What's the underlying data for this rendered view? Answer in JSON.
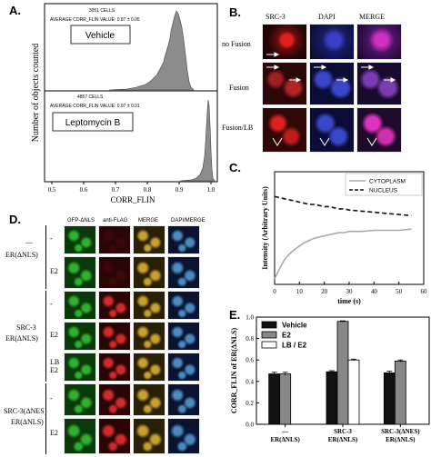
{
  "panel_labels": {
    "a": "A.",
    "b": "B.",
    "c": "C.",
    "d": "D.",
    "e": "E."
  },
  "panel_a": {
    "ylabel": "Number of objects counted",
    "xlabel": "CORR_FLIN",
    "x_ticks": [
      "0.5",
      "0.6",
      "0.7",
      "0.8",
      "0.9",
      "1.0"
    ],
    "top": {
      "cells": "3051 CELLS",
      "avg": "AVERAGE CORR_FLIN VALUE: 0.87 ± 0.05",
      "box": "Vehicle"
    },
    "bottom": {
      "cells": "4857 CELLS",
      "avg": "AVERAGE CORR_FLIN VALUE: 0.97 ± 0.01",
      "box": "Leptomycin B"
    }
  },
  "panel_b": {
    "columns": [
      "SRC-3",
      "DAPI",
      "MERGE"
    ],
    "rows": [
      "no Fusion",
      "Fusion",
      "Fusion/LB"
    ]
  },
  "panel_c": {
    "chart_data": {
      "type": "line",
      "xlabel": "time (s)",
      "ylabel": "Intensity (Arbitrary Units)",
      "x_ticks": [
        "0",
        "10",
        "20",
        "30",
        "40",
        "50",
        "60"
      ],
      "xlim": [
        0,
        60
      ],
      "ylim": [
        0,
        1
      ],
      "legend": "top-right",
      "series": [
        {
          "name": "CYTOPLASM",
          "color": "#aaaaaa",
          "dash": "solid",
          "x": [
            0,
            2,
            4,
            6,
            8,
            10,
            12,
            14,
            16,
            18,
            20,
            22,
            24,
            26,
            28,
            30,
            35,
            40,
            45,
            50,
            55
          ],
          "y": [
            0.05,
            0.14,
            0.22,
            0.27,
            0.31,
            0.34,
            0.37,
            0.39,
            0.41,
            0.42,
            0.43,
            0.44,
            0.45,
            0.46,
            0.46,
            0.47,
            0.47,
            0.48,
            0.48,
            0.48,
            0.49
          ]
        },
        {
          "name": "NUCLEUS",
          "color": "#111111",
          "dash": "dashed",
          "x": [
            0,
            2,
            4,
            6,
            8,
            10,
            12,
            14,
            16,
            18,
            20,
            22,
            24,
            26,
            28,
            30,
            35,
            40,
            45,
            50,
            55
          ],
          "y": [
            0.78,
            0.77,
            0.76,
            0.75,
            0.74,
            0.73,
            0.72,
            0.71,
            0.71,
            0.7,
            0.69,
            0.69,
            0.68,
            0.67,
            0.67,
            0.66,
            0.65,
            0.64,
            0.63,
            0.62,
            0.61
          ]
        }
      ]
    }
  },
  "panel_d": {
    "columns": [
      "GFP-ΔNLS",
      "anti-FLAG",
      "MERGE",
      "DAPI/MERGE"
    ],
    "groups": [
      {
        "title_line1": "—",
        "title_line2": "ER(ΔNLS)",
        "rows": [
          "-",
          "E2"
        ]
      },
      {
        "title_line1": "SRC-3",
        "title_line2": "ER(ΔNLS)",
        "rows": [
          "-",
          "E2",
          "LB\nE2"
        ]
      },
      {
        "title_line1": "SRC-3(ΔNES)",
        "title_line2": "ER(ΔNLS)",
        "rows": [
          "-",
          "E2"
        ]
      }
    ]
  },
  "panel_e": {
    "chart_data": {
      "type": "bar",
      "ylabel": "CORR_FLIN of ER(ΔNLS)",
      "y_ticks": [
        "0.0",
        "0.2",
        "0.4",
        "0.6",
        "0.8",
        "1.0"
      ],
      "ylim": [
        0,
        1.0
      ],
      "categories": [
        "—\nER(ΔNLS)",
        "SRC-3\nER(ΔNLS)",
        "SRC-3(ΔNES)\nER(ΔNLS)"
      ],
      "category_lines": [
        [
          "—",
          "ER(ΔNLS)"
        ],
        [
          "SRC-3",
          "ER(ΔNLS)"
        ],
        [
          "SRC-3(ΔNES)",
          "ER(ΔNLS)"
        ]
      ],
      "legend": "top-left",
      "series": [
        {
          "name": "Vehicle",
          "color": "#111111",
          "values": [
            0.47,
            0.49,
            0.48
          ],
          "errors": [
            0.015,
            0.01,
            0.015
          ]
        },
        {
          "name": "E2",
          "color": "#888888",
          "values": [
            0.47,
            0.96,
            0.59
          ],
          "errors": [
            0.015,
            0.005,
            0.01
          ]
        },
        {
          "name": "LB / E2",
          "color": "#ffffff",
          "values": [
            null,
            0.6,
            null
          ],
          "errors": [
            null,
            0.008,
            null
          ]
        }
      ]
    }
  }
}
